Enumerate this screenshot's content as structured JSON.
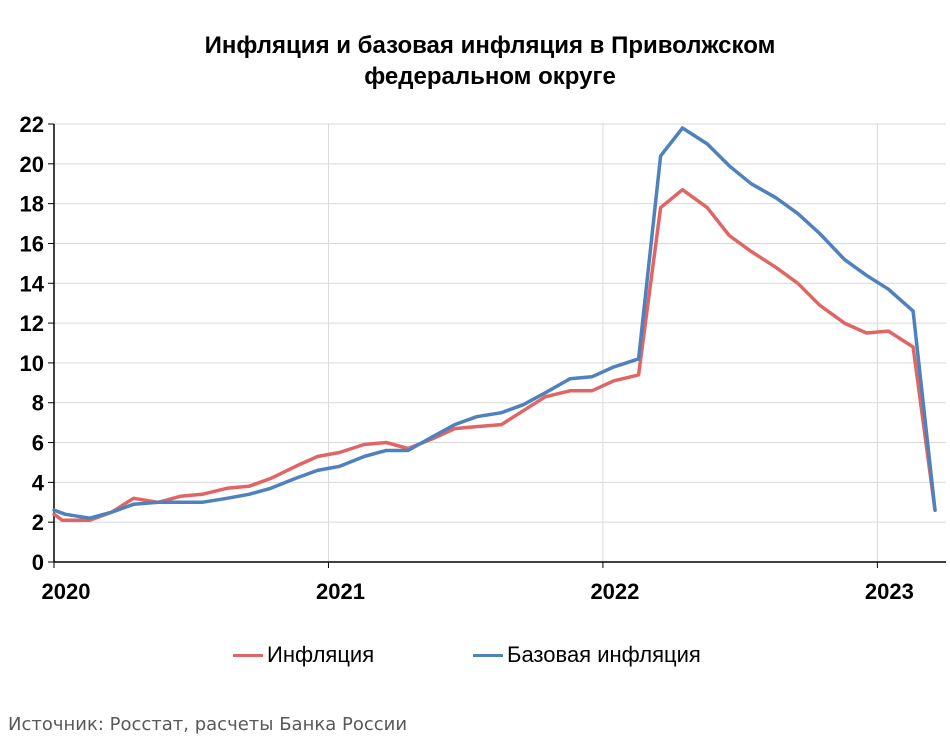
{
  "chart_data": {
    "type": "line",
    "title": "Инфляция и базовая инфляция в Приволжском федеральном округе",
    "title_lines": [
      "Инфляция и базовая инфляция в Приволжском",
      "федеральном округе"
    ],
    "ylim": [
      0,
      22
    ],
    "yticks": [
      0,
      2,
      4,
      6,
      8,
      10,
      12,
      14,
      16,
      18,
      20,
      22
    ],
    "xlim": [
      2020.0,
      2023.25
    ],
    "xticks": [
      {
        "value": 2020,
        "label": "2020"
      },
      {
        "value": 2021,
        "label": "2021"
      },
      {
        "value": 2022,
        "label": "2022"
      },
      {
        "value": 2023,
        "label": "2023"
      }
    ],
    "grid": true,
    "legend_position": "bottom",
    "series": [
      {
        "name": "Инфляция",
        "color": "#e06666",
        "x": [
          2020.0,
          2020.03,
          2020.13,
          2020.21,
          2020.29,
          2020.38,
          2020.46,
          2020.54,
          2020.63,
          2020.71,
          2020.79,
          2020.88,
          2020.96,
          2021.04,
          2021.13,
          2021.21,
          2021.29,
          2021.38,
          2021.46,
          2021.54,
          2021.63,
          2021.71,
          2021.79,
          2021.88,
          2021.96,
          2022.04,
          2022.13,
          2022.21,
          2022.29,
          2022.38,
          2022.46,
          2022.54,
          2022.63,
          2022.71,
          2022.79,
          2022.88,
          2022.96,
          2023.04,
          2023.13,
          2023.21
        ],
        "values": [
          2.4,
          2.1,
          2.1,
          2.5,
          3.2,
          3.0,
          3.3,
          3.4,
          3.7,
          3.8,
          4.2,
          4.8,
          5.3,
          5.5,
          5.9,
          6.0,
          5.7,
          6.2,
          6.7,
          6.8,
          6.9,
          7.6,
          8.3,
          8.6,
          8.6,
          9.1,
          9.4,
          17.8,
          18.7,
          17.8,
          16.4,
          15.6,
          14.8,
          14.0,
          12.9,
          12.0,
          11.5,
          11.6,
          10.8,
          2.6
        ]
      },
      {
        "name": "Базовая инфляция",
        "color": "#4f81bd",
        "x": [
          2020.0,
          2020.04,
          2020.13,
          2020.21,
          2020.29,
          2020.38,
          2020.46,
          2020.54,
          2020.63,
          2020.71,
          2020.79,
          2020.88,
          2020.96,
          2021.04,
          2021.13,
          2021.21,
          2021.29,
          2021.38,
          2021.46,
          2021.54,
          2021.63,
          2021.71,
          2021.79,
          2021.88,
          2021.96,
          2022.04,
          2022.13,
          2022.21,
          2022.29,
          2022.38,
          2022.46,
          2022.54,
          2022.63,
          2022.71,
          2022.79,
          2022.88,
          2022.96,
          2023.04,
          2023.13,
          2023.21
        ],
        "values": [
          2.6,
          2.4,
          2.2,
          2.5,
          2.9,
          3.0,
          3.0,
          3.0,
          3.2,
          3.4,
          3.7,
          4.2,
          4.6,
          4.8,
          5.3,
          5.6,
          5.6,
          6.3,
          6.9,
          7.3,
          7.5,
          7.9,
          8.5,
          9.2,
          9.3,
          9.8,
          10.2,
          20.4,
          21.8,
          21.0,
          19.9,
          19.0,
          18.3,
          17.5,
          16.5,
          15.2,
          14.4,
          13.7,
          12.6,
          2.6
        ]
      }
    ]
  },
  "source": "Источник: Росстат, расчеты Банка России"
}
